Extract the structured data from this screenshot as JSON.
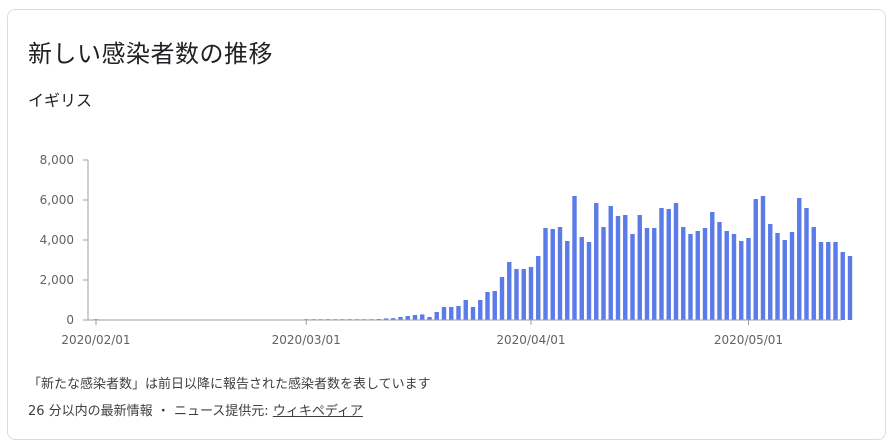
{
  "card": {
    "title": "新しい感染者数の推移",
    "subtitle": "イギリス",
    "note": "「新たな感染者数」は前日以降に報告された感染者数を表しています",
    "source_prefix": "26 分以内の最新情報 ・ ニュース提供元: ",
    "source_link": "ウィキペディア"
  },
  "chart_data": {
    "type": "bar",
    "title": "",
    "xlabel": "",
    "ylabel": "",
    "ylim": [
      0,
      8000
    ],
    "y_ticks": [
      "0",
      "2,000",
      "4,000",
      "6,000",
      "8,000"
    ],
    "y_tick_values": [
      0,
      2000,
      4000,
      6000,
      8000
    ],
    "x_ticks": [
      "2020/02/01",
      "2020/03/01",
      "2020/04/01",
      "2020/05/01"
    ],
    "x_tick_dates": [
      "2020-02-01",
      "2020-03-01",
      "2020-04-01",
      "2020-05-01"
    ],
    "start_date": "2020-02-01",
    "color": "#5b7be8",
    "grid": false,
    "values": [
      2,
      0,
      0,
      0,
      0,
      0,
      0,
      0,
      0,
      0,
      0,
      0,
      0,
      0,
      0,
      0,
      0,
      0,
      0,
      0,
      0,
      0,
      0,
      0,
      0,
      0,
      0,
      0,
      0,
      2,
      5,
      12,
      10,
      15,
      20,
      25,
      35,
      30,
      40,
      50,
      80,
      90,
      150,
      200,
      250,
      280,
      150,
      400,
      650,
      650,
      700,
      1000,
      650,
      1000,
      1400,
      1450,
      2150,
      2900,
      2550,
      2550,
      2650,
      3200,
      4600,
      4550,
      4650,
      3950,
      6200,
      4150,
      3900,
      5850,
      4650,
      5700,
      5200,
      5250,
      4300,
      5250,
      4600,
      4600,
      5600,
      5550,
      5850,
      4650,
      4300,
      4450,
      4600,
      5400,
      4900,
      4450,
      4300,
      3950,
      4100,
      6050,
      6200,
      4800,
      4350,
      4000,
      4400,
      6100,
      5600,
      4650,
      3900,
      3900,
      3900,
      3400,
      3200
    ]
  }
}
